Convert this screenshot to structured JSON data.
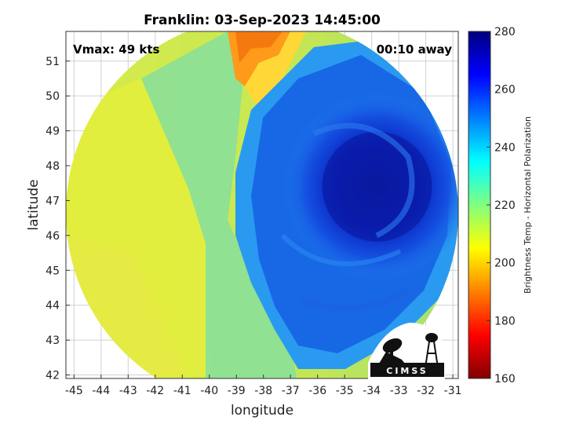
{
  "chart_data": {
    "type": "heatmap",
    "title": "Franklin: 03-Sep-2023 14:45:00",
    "xlabel": "longitude",
    "ylabel": "latitude",
    "xlim": [
      -45.3,
      -30.8
    ],
    "ylim": [
      41.9,
      51.85
    ],
    "x_ticks": [
      -45,
      -44,
      -43,
      -42,
      -41,
      -40,
      -39,
      -38,
      -37,
      -36,
      -35,
      -34,
      -33,
      -32,
      -31
    ],
    "y_ticks": [
      42,
      43,
      44,
      45,
      46,
      47,
      48,
      49,
      50,
      51
    ],
    "grid": true,
    "colorbar": {
      "label": "Brightness Temp - Horizontal Polarization",
      "range": [
        160,
        280
      ],
      "ticks": [
        160,
        180,
        200,
        220,
        240,
        260,
        280
      ],
      "colormap": "jet"
    },
    "storm_center": {
      "lon": -33.8,
      "lat": 47.4
    },
    "annotations": {
      "vmax": "Vmax: 49 kts",
      "time_away": "00:10 away"
    },
    "logo": "CIMSS"
  },
  "colors": {
    "cold_core": "#0a1ea8",
    "warm_background": "#c8e84a",
    "grid": "#d0d0d0"
  }
}
